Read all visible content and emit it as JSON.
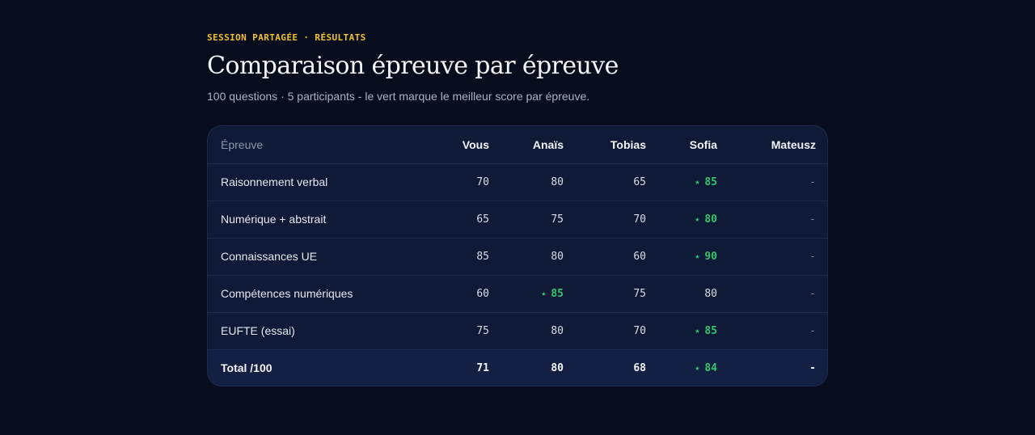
{
  "header": {
    "eyebrow": "SESSION PARTAGÉE · RÉSULTATS",
    "title": "Comparaison épreuve par épreuve",
    "subtitle": "100 questions · 5 participants - le vert marque le meilleur score par épreuve."
  },
  "table": {
    "columns": [
      "Épreuve",
      "Vous",
      "Anaïs",
      "Tobias",
      "Sofia",
      "Mateusz"
    ],
    "star": "★",
    "rows": [
      {
        "label": "Raisonnement verbal",
        "values": [
          "70",
          "80",
          "65",
          "85",
          "-"
        ],
        "best": 3
      },
      {
        "label": "Numérique + abstrait",
        "values": [
          "65",
          "75",
          "70",
          "80",
          "-"
        ],
        "best": 3
      },
      {
        "label": "Connaissances UE",
        "values": [
          "85",
          "80",
          "60",
          "90",
          "-"
        ],
        "best": 3
      },
      {
        "label": "Compétences numériques",
        "values": [
          "60",
          "85",
          "75",
          "80",
          "-"
        ],
        "best": 1
      },
      {
        "label": "EUFTE (essai)",
        "values": [
          "75",
          "80",
          "70",
          "85",
          "-"
        ],
        "best": 3
      }
    ],
    "total": {
      "label": "Total /100",
      "values": [
        "71",
        "80",
        "68",
        "84",
        "-"
      ],
      "best": 3
    },
    "colors": {
      "best": "#33c46c",
      "accent": "#f2c230"
    }
  }
}
